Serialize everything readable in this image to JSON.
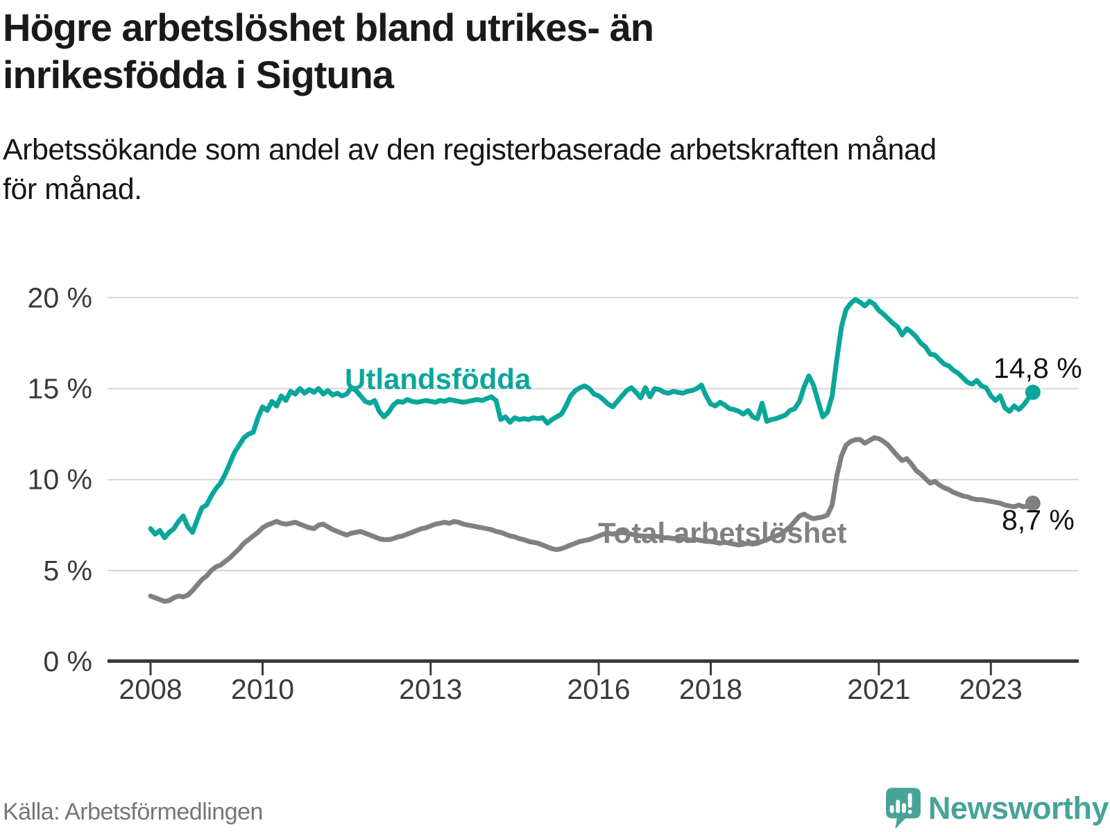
{
  "header": {
    "title_line1": "Högre arbetslöshet bland utrikes- än",
    "title_line2": "inrikesfödda i Sigtuna",
    "subtitle_line1": "Arbetssökande som andel av den registerbaserade arbetskraften månad",
    "subtitle_line2": "för månad."
  },
  "footer": {
    "source": "Källa: Arbetsförmedlingen",
    "brand": "Newsworthy",
    "brand_color": "#47a39a"
  },
  "chart_data": {
    "type": "line",
    "title": "Högre arbetslöshet bland utrikes- än inrikesfödda i Sigtuna",
    "subtitle": "Arbetssökande som andel av den registerbaserade arbetskraften månad för månad.",
    "xlabel": "",
    "ylabel": "",
    "unit": "%",
    "grid": "horizontal",
    "legend_position": "inline-labels",
    "ylim": [
      0,
      20
    ],
    "x_start": {
      "year": 2008,
      "month": 1
    },
    "x_end": {
      "year": 2023,
      "month": 10
    },
    "x_step_months": 1,
    "yticks": [
      {
        "value": 0,
        "label": "0 %"
      },
      {
        "value": 5,
        "label": "5 %"
      },
      {
        "value": 10,
        "label": "10 %"
      },
      {
        "value": 15,
        "label": "15 %"
      },
      {
        "value": 20,
        "label": "20 %"
      }
    ],
    "xticks": [
      {
        "value": 2008,
        "label": "2008"
      },
      {
        "value": 2010,
        "label": "2010"
      },
      {
        "value": 2013,
        "label": "2013"
      },
      {
        "value": 2016,
        "label": "2016"
      },
      {
        "value": 2018,
        "label": "2018"
      },
      {
        "value": 2021,
        "label": "2021"
      },
      {
        "value": 2023,
        "label": "2023"
      }
    ],
    "series": [
      {
        "name": "Utlandsfödda",
        "color": "#0AA69B",
        "end_label": "14,8 %",
        "last_value": 14.8,
        "values": [
          7.3,
          7.0,
          7.2,
          6.8,
          7.1,
          7.3,
          7.7,
          8.0,
          7.4,
          7.1,
          7.8,
          8.45,
          8.6,
          9.1,
          9.5,
          9.8,
          10.3,
          10.9,
          11.5,
          11.9,
          12.3,
          12.5,
          12.6,
          13.4,
          14.0,
          13.8,
          14.3,
          14.05,
          14.6,
          14.35,
          14.85,
          14.7,
          15.0,
          14.75,
          14.95,
          14.8,
          15.0,
          14.7,
          14.9,
          14.65,
          14.75,
          14.6,
          14.7,
          15.05,
          14.9,
          14.6,
          14.3,
          14.2,
          14.35,
          13.75,
          13.45,
          13.7,
          14.1,
          14.3,
          14.25,
          14.4,
          14.3,
          14.25,
          14.3,
          14.35,
          14.3,
          14.25,
          14.35,
          14.3,
          14.4,
          14.35,
          14.3,
          14.25,
          14.3,
          14.35,
          14.4,
          14.35,
          14.45,
          14.55,
          14.35,
          13.3,
          13.45,
          13.15,
          13.4,
          13.3,
          13.35,
          13.3,
          13.4,
          13.35,
          13.4,
          13.1,
          13.3,
          13.45,
          13.6,
          14.05,
          14.6,
          14.9,
          15.05,
          15.15,
          15.0,
          14.7,
          14.6,
          14.4,
          14.15,
          14.0,
          14.3,
          14.6,
          14.9,
          15.05,
          14.8,
          14.5,
          15.05,
          14.55,
          15.0,
          14.95,
          14.8,
          14.75,
          14.85,
          14.8,
          14.75,
          14.85,
          14.9,
          15.0,
          15.2,
          14.6,
          14.15,
          14.05,
          14.25,
          14.1,
          13.9,
          13.85,
          13.75,
          13.6,
          13.8,
          13.45,
          13.35,
          14.2,
          13.2,
          13.3,
          13.35,
          13.45,
          13.55,
          13.8,
          13.9,
          14.3,
          15.1,
          15.7,
          15.2,
          14.3,
          13.45,
          13.7,
          14.6,
          16.6,
          18.4,
          19.35,
          19.7,
          19.9,
          19.75,
          19.55,
          19.8,
          19.65,
          19.3,
          19.1,
          18.85,
          18.6,
          18.4,
          17.95,
          18.3,
          18.1,
          17.85,
          17.5,
          17.3,
          16.9,
          16.85,
          16.6,
          16.35,
          16.25,
          16.0,
          15.85,
          15.6,
          15.35,
          15.25,
          15.45,
          15.15,
          15.05,
          14.6,
          14.35,
          14.6,
          13.95,
          13.75,
          14.05,
          13.85,
          14.1,
          14.45,
          14.8
        ]
      },
      {
        "name": "Total arbetslöshet",
        "color": "#808080",
        "end_label": "8,7 %",
        "last_value": 8.7,
        "values": [
          3.6,
          3.5,
          3.4,
          3.3,
          3.35,
          3.5,
          3.6,
          3.55,
          3.65,
          3.9,
          4.2,
          4.5,
          4.7,
          5.0,
          5.2,
          5.3,
          5.5,
          5.7,
          5.95,
          6.2,
          6.5,
          6.7,
          6.9,
          7.1,
          7.35,
          7.5,
          7.6,
          7.7,
          7.6,
          7.55,
          7.6,
          7.65,
          7.55,
          7.45,
          7.35,
          7.3,
          7.5,
          7.55,
          7.4,
          7.25,
          7.15,
          7.05,
          6.95,
          7.05,
          7.1,
          7.15,
          7.05,
          6.95,
          6.85,
          6.75,
          6.7,
          6.7,
          6.75,
          6.85,
          6.9,
          7.0,
          7.1,
          7.2,
          7.3,
          7.35,
          7.45,
          7.55,
          7.6,
          7.65,
          7.6,
          7.7,
          7.65,
          7.55,
          7.5,
          7.45,
          7.4,
          7.35,
          7.3,
          7.25,
          7.15,
          7.1,
          7.0,
          6.9,
          6.85,
          6.75,
          6.7,
          6.6,
          6.55,
          6.5,
          6.4,
          6.3,
          6.2,
          6.15,
          6.2,
          6.3,
          6.4,
          6.5,
          6.6,
          6.65,
          6.7,
          6.8,
          6.9,
          7.0,
          7.05,
          7.0,
          7.05,
          7.1,
          7.05,
          7.0,
          6.95,
          6.9,
          6.9,
          6.85,
          6.9,
          6.85,
          6.8,
          6.8,
          6.75,
          6.8,
          6.75,
          6.7,
          6.65,
          6.7,
          6.65,
          6.6,
          6.6,
          6.55,
          6.5,
          6.55,
          6.5,
          6.45,
          6.4,
          6.45,
          6.5,
          6.45,
          6.5,
          6.6,
          6.7,
          6.8,
          6.9,
          7.0,
          7.2,
          7.4,
          7.7,
          8.0,
          8.1,
          7.95,
          7.85,
          7.9,
          7.95,
          8.05,
          8.6,
          10.2,
          11.3,
          11.9,
          12.1,
          12.2,
          12.2,
          12.0,
          12.15,
          12.3,
          12.25,
          12.1,
          11.9,
          11.6,
          11.3,
          11.05,
          11.15,
          10.85,
          10.5,
          10.3,
          10.05,
          9.8,
          9.9,
          9.7,
          9.55,
          9.45,
          9.3,
          9.2,
          9.1,
          9.05,
          8.95,
          8.9,
          8.9,
          8.85,
          8.8,
          8.75,
          8.7,
          8.6,
          8.55,
          8.5,
          8.6,
          8.5,
          8.55,
          8.7
        ]
      }
    ]
  }
}
